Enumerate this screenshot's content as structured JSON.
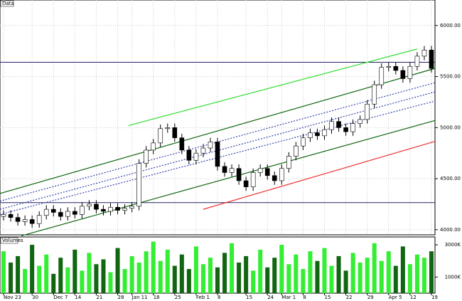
{
  "chart_data": {
    "type": "candlestick",
    "title": "Data",
    "volume_title": "Volumes",
    "x_labels": [
      {
        "index": 0,
        "label": "Nov 23"
      },
      {
        "index": 4,
        "label": "30"
      },
      {
        "index": 7,
        "label": "Dec 7"
      },
      {
        "index": 10,
        "label": "14"
      },
      {
        "index": 13,
        "label": "21"
      },
      {
        "index": 16,
        "label": "28"
      },
      {
        "index": 18,
        "label": "Jan 11"
      },
      {
        "index": 21,
        "label": "18"
      },
      {
        "index": 24,
        "label": "25"
      },
      {
        "index": 27,
        "label": "Feb 1"
      },
      {
        "index": 30,
        "label": "8"
      },
      {
        "index": 34,
        "label": "15"
      },
      {
        "index": 37,
        "label": "24"
      },
      {
        "index": 39,
        "label": "Mar 1"
      },
      {
        "index": 42,
        "label": "8"
      },
      {
        "index": 45,
        "label": "15"
      },
      {
        "index": 48,
        "label": "22"
      },
      {
        "index": 51,
        "label": "29"
      },
      {
        "index": 54,
        "label": "Apr 5"
      },
      {
        "index": 57,
        "label": "12"
      },
      {
        "index": 60,
        "label": "19"
      }
    ],
    "open": [
      4130,
      4150,
      4120,
      4080,
      4100,
      4060,
      4140,
      4200,
      4170,
      4130,
      4180,
      4150,
      4230,
      4250,
      4200,
      4180,
      4220,
      4190,
      4210,
      4230,
      4650,
      4780,
      4850,
      4990,
      5000,
      4900,
      4780,
      4680,
      4750,
      4800,
      4860,
      4620,
      4560,
      4600,
      4480,
      4420,
      4560,
      4600,
      4530,
      4480,
      4600,
      4720,
      4820,
      4900,
      4950,
      4920,
      4980,
      5060,
      5000,
      4960,
      5040,
      5080,
      5230,
      5420,
      5590,
      5600,
      5560,
      5480,
      5600,
      5700,
      5760
    ],
    "high": [
      4190,
      4190,
      4160,
      4140,
      4140,
      4180,
      4240,
      4240,
      4210,
      4220,
      4220,
      4270,
      4290,
      4290,
      4240,
      4260,
      4260,
      4250,
      4270,
      4690,
      4820,
      4890,
      5030,
      5040,
      5040,
      4940,
      4820,
      4790,
      4840,
      4900,
      4900,
      4660,
      4640,
      4640,
      4520,
      4600,
      4640,
      4640,
      4570,
      4640,
      4760,
      4860,
      4940,
      4990,
      4990,
      5020,
      5100,
      5100,
      5040,
      5080,
      5120,
      5270,
      5460,
      5630,
      5640,
      5640,
      5600,
      5640,
      5740,
      5800,
      5800
    ],
    "low": [
      4090,
      4080,
      4040,
      4040,
      4020,
      4020,
      4100,
      4130,
      4090,
      4090,
      4110,
      4110,
      4190,
      4160,
      4140,
      4140,
      4150,
      4150,
      4170,
      4190,
      4610,
      4740,
      4810,
      4950,
      4860,
      4740,
      4640,
      4640,
      4710,
      4760,
      4580,
      4520,
      4520,
      4440,
      4380,
      4380,
      4520,
      4490,
      4440,
      4440,
      4560,
      4680,
      4780,
      4860,
      4880,
      4880,
      4940,
      4960,
      4920,
      4920,
      5000,
      5040,
      5190,
      5380,
      5550,
      5520,
      5440,
      5440,
      5560,
      5660,
      5540
    ],
    "close": [
      4150,
      4120,
      4080,
      4100,
      4060,
      4140,
      4200,
      4170,
      4130,
      4180,
      4150,
      4230,
      4250,
      4200,
      4180,
      4220,
      4190,
      4210,
      4230,
      4650,
      4780,
      4850,
      4990,
      5000,
      4900,
      4780,
      4680,
      4750,
      4800,
      4860,
      4620,
      4560,
      4600,
      4480,
      4420,
      4560,
      4600,
      4530,
      4480,
      4600,
      4720,
      4820,
      4900,
      4950,
      4920,
      4980,
      5060,
      5000,
      4960,
      5040,
      5080,
      5230,
      5420,
      5590,
      5600,
      5560,
      5480,
      5600,
      5700,
      5760,
      5580
    ],
    "volume": [
      2600,
      1900,
      2300,
      1500,
      3000,
      1700,
      2400,
      1200,
      2200,
      1600,
      2700,
      1400,
      2500,
      1800,
      2100,
      1300,
      2800,
      1500,
      2300,
      1900,
      2600,
      3200,
      2000,
      2700,
      1700,
      2400,
      1500,
      2900,
      1800,
      2200,
      1600,
      2500,
      3100,
      1900,
      2300,
      1400,
      2700,
      1600,
      2200,
      3000,
      1800,
      2400,
      1500,
      2600,
      2000,
      2800,
      1700,
      2300,
      1400,
      2500,
      1900,
      2200,
      3100,
      2000,
      2600,
      1700,
      2900,
      1800,
      2400,
      2200,
      2600
    ],
    "up_color": "#33ee33",
    "down_color": "#116611",
    "ylim": [
      3950,
      6250
    ],
    "yticks": [
      {
        "value": 4000,
        "label": "4000.00"
      },
      {
        "value": 4500,
        "label": "4500.00"
      },
      {
        "value": 5000,
        "label": "5000.00"
      },
      {
        "value": 5500,
        "label": "5500.00"
      },
      {
        "value": 6000,
        "label": "6000.00"
      }
    ],
    "volume_ylim": [
      0,
      3400
    ],
    "volume_yticks": [
      {
        "value": 1000,
        "label": "1000K"
      },
      {
        "value": 3000,
        "label": "3000K"
      }
    ],
    "trend_lines": [
      {
        "from": [
          17.5,
          5020
        ],
        "to": [
          58,
          5770
        ],
        "color": "#33dd33",
        "dash": false
      },
      {
        "from": [
          -0.5,
          4355
        ],
        "to": [
          60.5,
          5580
        ],
        "color": "#116611",
        "dash": false
      },
      {
        "from": [
          2.5,
          3940
        ],
        "to": [
          60.5,
          5070
        ],
        "color": "#116611",
        "dash": false
      },
      {
        "from": [
          -0.5,
          4200
        ],
        "to": [
          60.5,
          5350
        ],
        "color": "#3344aa",
        "dash": true
      },
      {
        "from": [
          -0.5,
          4150
        ],
        "to": [
          60.5,
          5260
        ],
        "color": "#3344aa",
        "dash": true
      },
      {
        "from": [
          -0.5,
          4280
        ],
        "to": [
          60.5,
          5440
        ],
        "color": "#3344aa",
        "dash": true
      },
      {
        "from": [
          28,
          4200
        ],
        "to": [
          60.5,
          4865
        ],
        "color": "#ee3333",
        "dash": false
      }
    ],
    "h_lines": [
      {
        "value": 5640,
        "color": "#222266"
      },
      {
        "value": 4265,
        "color": "#222266"
      }
    ],
    "grid": true
  }
}
